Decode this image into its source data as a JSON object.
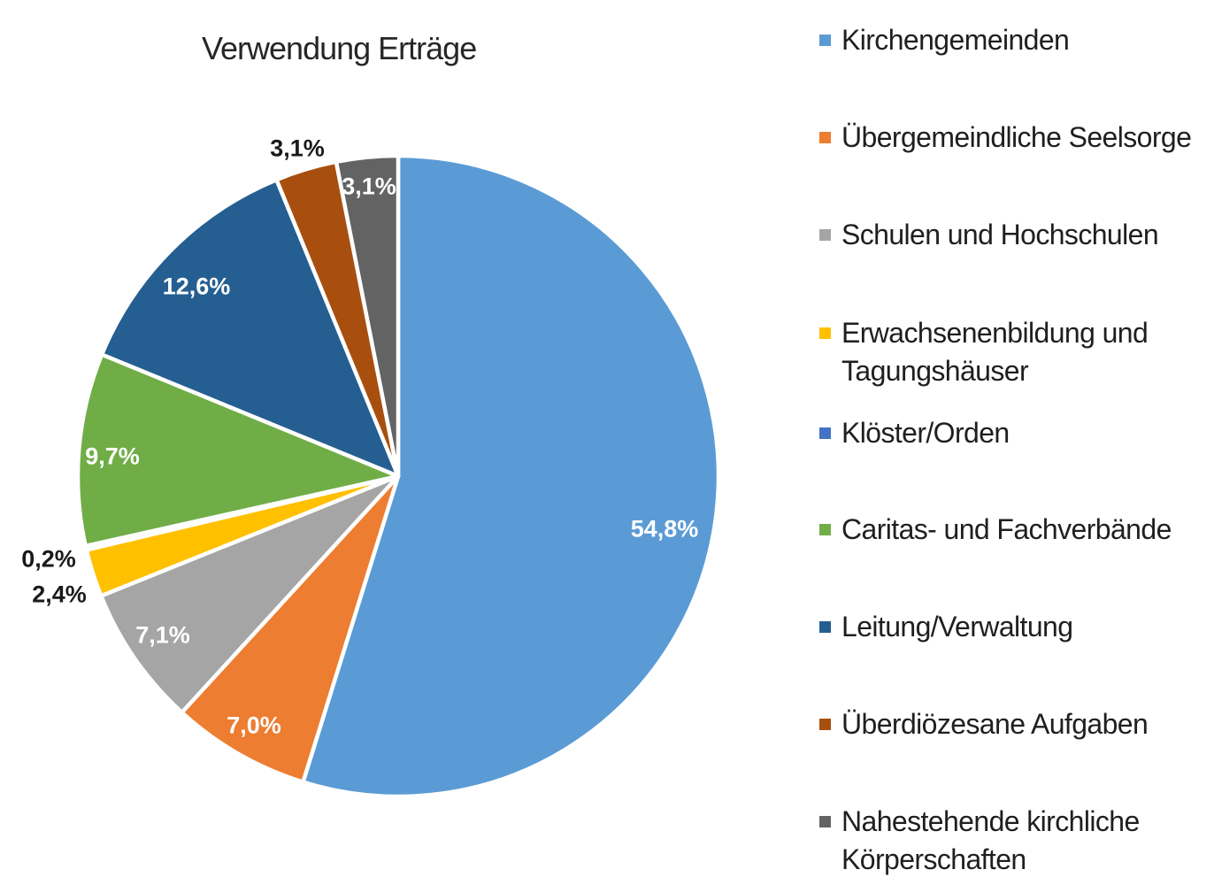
{
  "chart_data": {
    "type": "pie",
    "title": "Verwendung Erträge",
    "legend_position": "right",
    "background_color": "#ffffff",
    "slice_border_color": "#ffffff",
    "slices": [
      {
        "name": "Kirchengemeinden",
        "value": 54.8,
        "percent_label": "54,8%",
        "color": "#5B9BD5",
        "legend_lines": [
          "Kirchengemeinden"
        ]
      },
      {
        "name": "Übergemeindliche Seelsorge",
        "value": 7.0,
        "percent_label": "7,0%",
        "color": "#ED7D31",
        "legend_lines": [
          "Übergemeindliche Seelsorge"
        ]
      },
      {
        "name": "Schulen und Hochschulen",
        "value": 7.1,
        "percent_label": "7,1%",
        "color": "#A5A5A5",
        "legend_lines": [
          "Schulen und Hochschulen"
        ]
      },
      {
        "name": "Erwachsenenbildung und Tagungshäuser",
        "value": 2.4,
        "percent_label": "2,4%",
        "color": "#FFC000",
        "legend_lines": [
          "Erwachsenenbildung und",
          "Tagungshäuser"
        ]
      },
      {
        "name": "Klöster/Orden",
        "value": 0.2,
        "percent_label": "0,2%",
        "color": "#4472C4",
        "legend_lines": [
          "Klöster/Orden"
        ]
      },
      {
        "name": "Caritas- und Fachverbände",
        "value": 9.7,
        "percent_label": "9,7%",
        "color": "#70AD47",
        "legend_lines": [
          "Caritas- und Fachverbände"
        ]
      },
      {
        "name": "Leitung/Verwaltung",
        "value": 12.6,
        "percent_label": "12,6%",
        "color": "#255E91",
        "legend_lines": [
          "Leitung/Verwaltung"
        ]
      },
      {
        "name": "Überdiözesane Aufgaben",
        "value": 3.1,
        "percent_label": "3,1%",
        "color": "#A84F10",
        "legend_lines": [
          "Überdiözesane Aufgaben"
        ]
      },
      {
        "name": "Nahestehende kirchliche Körperschaften",
        "value": 3.1,
        "percent_label": "3,1%",
        "color": "#636363",
        "legend_lines": [
          "Nahestehende kirchliche",
          "Körperschaften"
        ]
      }
    ]
  }
}
